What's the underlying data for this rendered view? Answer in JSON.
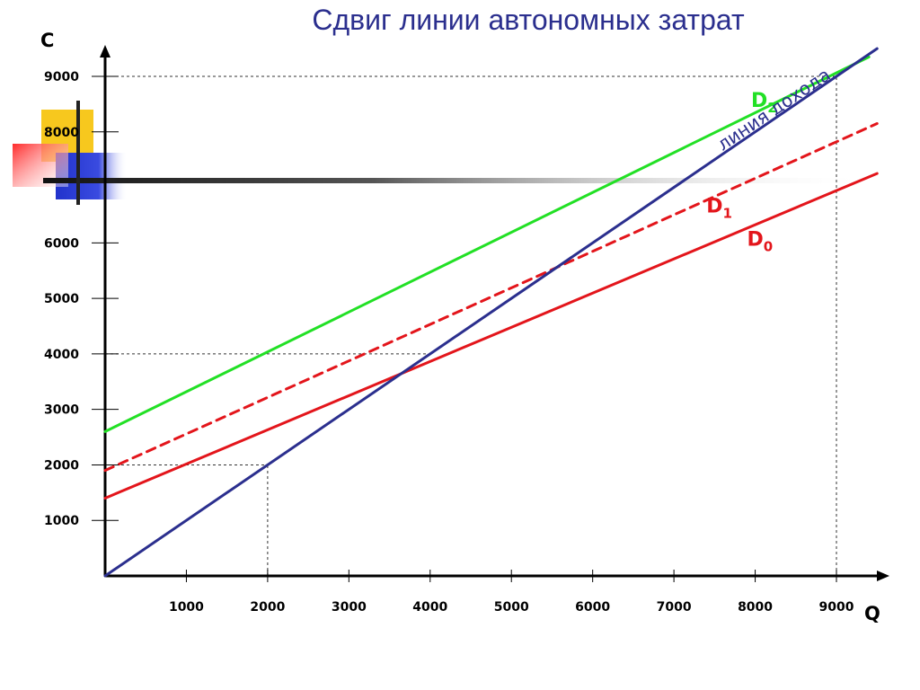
{
  "title": "Сдвиг линии автономных затрат",
  "chart_data": {
    "type": "line",
    "xlabel": "Q",
    "ylabel": "C",
    "xlim": [
      0,
      9500
    ],
    "ylim": [
      0,
      9300
    ],
    "x_ticks": [
      1000,
      2000,
      3000,
      4000,
      5000,
      6000,
      7000,
      8000,
      9000
    ],
    "y_ticks": [
      1000,
      2000,
      3000,
      4000,
      5000,
      6000,
      8000,
      9000
    ],
    "series": [
      {
        "name": "D",
        "sub": "0",
        "color": "#e3151b",
        "dash": false,
        "x": [
          0,
          9500
        ],
        "y": [
          1400,
          7250
        ],
        "label_at": [
          7900,
          5950
        ]
      },
      {
        "name": "D",
        "sub": "1",
        "color": "#e3151b",
        "dash": true,
        "x": [
          0,
          9500
        ],
        "y": [
          1900,
          8150
        ],
        "label_at": [
          7400,
          6550
        ]
      },
      {
        "name": "D",
        "sub": "2",
        "color": "#22e025",
        "dash": false,
        "x": [
          0,
          9400
        ],
        "y": [
          2600,
          9350
        ],
        "label_at": [
          7950,
          8450
        ]
      },
      {
        "name": "линия дохода",
        "color": "#2b2f8e",
        "dash": false,
        "x": [
          0,
          9500
        ],
        "y": [
          0,
          9500
        ],
        "label_at": [
          7600,
          7650
        ],
        "label_rotate": -34
      }
    ],
    "guides": [
      {
        "x": [
          0,
          2000
        ],
        "y": [
          2000,
          2000
        ]
      },
      {
        "x": [
          2000,
          2000
        ],
        "y": [
          0,
          2000
        ]
      },
      {
        "x": [
          0,
          9000
        ],
        "y": [
          9000,
          9000
        ]
      },
      {
        "x": [
          9000,
          9000
        ],
        "y": [
          0,
          9000
        ]
      },
      {
        "x": [
          0,
          4000
        ],
        "y": [
          4000,
          4000
        ]
      }
    ],
    "grid": false,
    "legend": "none"
  }
}
